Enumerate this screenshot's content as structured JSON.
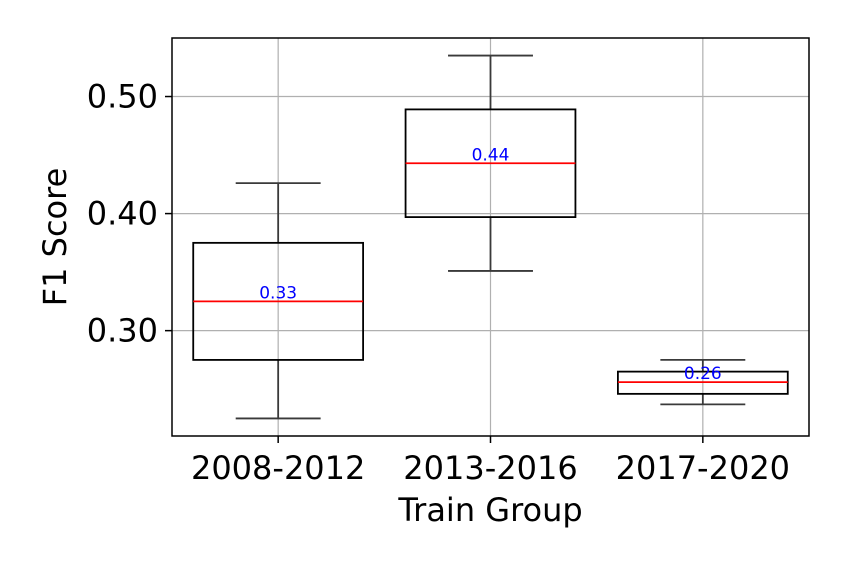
{
  "chart_data": {
    "type": "box",
    "title": "",
    "xlabel": "Train Group",
    "ylabel": "F1 Score",
    "categories": [
      "2008-2012",
      "2013-2016",
      "2017-2020"
    ],
    "boxes": [
      {
        "category": "2008-2012",
        "whisker_low": 0.225,
        "q1": 0.275,
        "median": 0.325,
        "q3": 0.375,
        "whisker_high": 0.426,
        "median_label": "0.33"
      },
      {
        "category": "2013-2016",
        "whisker_low": 0.351,
        "q1": 0.397,
        "median": 0.443,
        "q3": 0.489,
        "whisker_high": 0.535,
        "median_label": "0.44"
      },
      {
        "category": "2017-2020",
        "whisker_low": 0.237,
        "q1": 0.246,
        "median": 0.256,
        "q3": 0.265,
        "whisker_high": 0.275,
        "median_label": "0.26"
      }
    ],
    "yticks": [
      0.3,
      0.4,
      0.5
    ],
    "ytick_labels": [
      "0.30",
      "0.40",
      "0.50"
    ],
    "ylim": [
      0.21,
      0.55
    ],
    "grid": true,
    "colors": {
      "box_edge": "#000000",
      "median_line": "#ff0000",
      "median_label": "#0000ff",
      "whisker": "#3a3a3a",
      "grid": "#b0b0b0"
    }
  }
}
